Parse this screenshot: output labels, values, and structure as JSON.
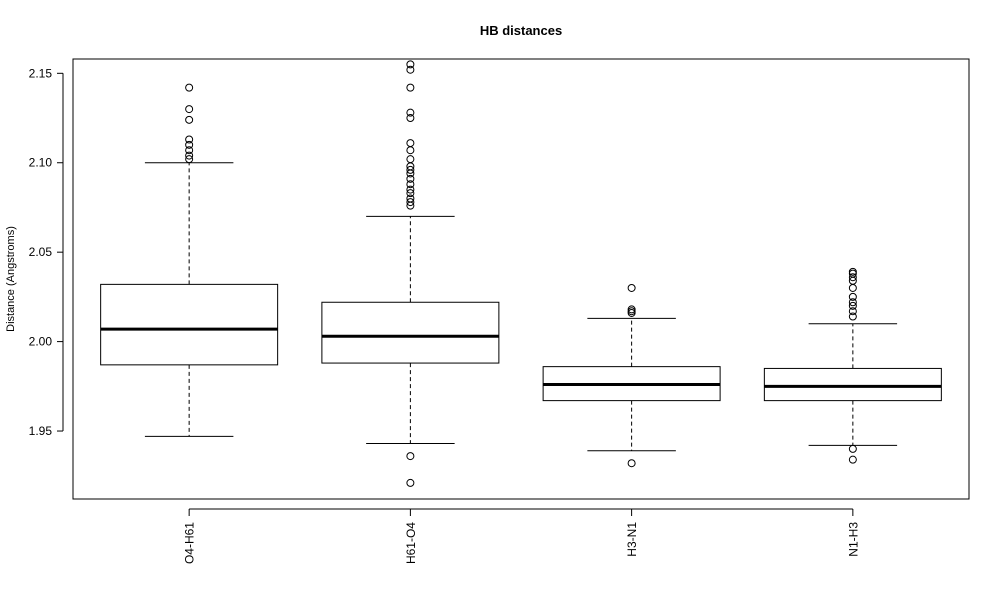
{
  "chart_data": {
    "type": "boxplot",
    "title": "HB distances",
    "xlabel": "",
    "ylabel": "Distance (Angstroms)",
    "ylim": [
      1.912,
      2.158
    ],
    "y_ticks": [
      1.95,
      2.0,
      2.05,
      2.1,
      2.15
    ],
    "y_tick_labels": [
      "1.95",
      "2.00",
      "2.05",
      "2.10",
      "2.15"
    ],
    "categories": [
      "O4-H61",
      "H61-O4",
      "H3-N1",
      "N1-H3"
    ],
    "boxes": [
      {
        "name": "O4-H61",
        "whisker_low": 1.947,
        "q1": 1.987,
        "median": 2.007,
        "q3": 2.032,
        "whisker_high": 2.1,
        "outliers": [
          2.102,
          2.104,
          2.107,
          2.11,
          2.113,
          2.124,
          2.13,
          2.142
        ]
      },
      {
        "name": "H61-O4",
        "whisker_low": 1.943,
        "q1": 1.988,
        "median": 2.003,
        "q3": 2.022,
        "whisker_high": 2.07,
        "outliers": [
          1.921,
          1.936,
          2.076,
          2.078,
          2.08,
          2.083,
          2.085,
          2.088,
          2.091,
          2.094,
          2.096,
          2.098,
          2.102,
          2.107,
          2.111,
          2.125,
          2.128,
          2.142,
          2.152,
          2.155
        ]
      },
      {
        "name": "H3-N1",
        "whisker_low": 1.939,
        "q1": 1.967,
        "median": 1.976,
        "q3": 1.986,
        "whisker_high": 2.013,
        "outliers": [
          1.932,
          2.016,
          2.017,
          2.018,
          2.03
        ]
      },
      {
        "name": "N1-H3",
        "whisker_low": 1.942,
        "q1": 1.967,
        "median": 1.975,
        "q3": 1.985,
        "whisker_high": 2.01,
        "outliers": [
          1.934,
          1.94,
          2.014,
          2.017,
          2.02,
          2.022,
          2.025,
          2.03,
          2.034,
          2.036,
          2.038,
          2.039
        ]
      }
    ]
  }
}
